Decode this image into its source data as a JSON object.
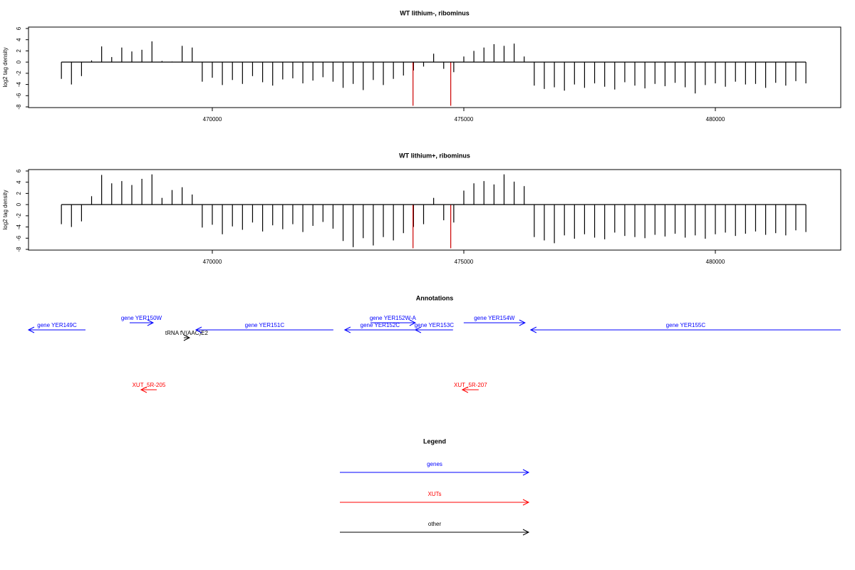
{
  "chart_data": [
    {
      "type": "bar",
      "title": "WT lithium-, ribominus",
      "ylabel": "log2 tag density",
      "xlim": [
        466346,
        482493
      ],
      "ylim": [
        -8,
        6
      ],
      "xticks": [
        470000,
        475000,
        480000
      ],
      "yticks": [
        -8,
        -6,
        -4,
        -2,
        0,
        2,
        4,
        6
      ],
      "series": [
        {
          "name": "signal",
          "color": "#000000",
          "x": [
            467000,
            467200,
            467400,
            467600,
            467800,
            468000,
            468200,
            468400,
            468600,
            468800,
            469000,
            469200,
            469400,
            469600,
            469800,
            470000,
            470200,
            470400,
            470600,
            470800,
            471000,
            471200,
            471400,
            471600,
            471800,
            472000,
            472200,
            472400,
            472600,
            472800,
            473000,
            473200,
            473400,
            473600,
            473800,
            474000,
            474200,
            474400,
            474600,
            474800,
            475000,
            475200,
            475400,
            475600,
            475800,
            476000,
            476200,
            476400,
            476600,
            476800,
            477000,
            477200,
            477400,
            477600,
            477800,
            478000,
            478200,
            478400,
            478600,
            478800,
            479000,
            479200,
            479400,
            479600,
            479800,
            480000,
            480200,
            480400,
            480600,
            480800,
            481000,
            481200,
            481400,
            481600,
            481800
          ],
          "values": [
            -3,
            -4,
            -2.5,
            0.3,
            2.8,
            0.9,
            2.6,
            1.9,
            2.2,
            3.7,
            0.2,
            0.1,
            2.9,
            2.6,
            -3.5,
            -2.8,
            -4.1,
            -3.2,
            -3.9,
            -2.5,
            -3.6,
            -4.2,
            -3.1,
            -2.9,
            -3.8,
            -3.3,
            -2.7,
            -3.5,
            -4.6,
            -3.9,
            -5.0,
            -3.2,
            -4.1,
            -3.0,
            -2.4,
            -1.5,
            -0.8,
            1.5,
            -1.2,
            -1.8,
            1.0,
            2.0,
            2.6,
            3.2,
            2.9,
            3.3,
            1.0,
            -4.2,
            -4.8,
            -4.5,
            -5.1,
            -4.0,
            -4.6,
            -3.8,
            -4.4,
            -4.9,
            -3.6,
            -4.2,
            -4.7,
            -3.9,
            -4.3,
            -3.7,
            -4.5,
            -5.6,
            -4.1,
            -3.8,
            -4.4,
            -3.5,
            -4.0,
            -3.9,
            -4.6,
            -3.7,
            -4.2,
            -3.4,
            -3.8
          ]
        },
        {
          "name": "highlight",
          "color": "#cc0000",
          "x": [
            473990,
            474740
          ],
          "values": [
            -7.8,
            -7.8
          ]
        }
      ]
    },
    {
      "type": "bar",
      "title": "WT lithium+, ribominus",
      "ylabel": "log2 tag density",
      "xlim": [
        466346,
        482493
      ],
      "ylim": [
        -8,
        6
      ],
      "xticks": [
        470000,
        475000,
        480000
      ],
      "yticks": [
        -8,
        -6,
        -4,
        -2,
        0,
        2,
        4,
        6
      ],
      "series": [
        {
          "name": "signal",
          "color": "#000000",
          "x": [
            467000,
            467200,
            467400,
            467600,
            467800,
            468000,
            468200,
            468400,
            468600,
            468800,
            469000,
            469200,
            469400,
            469600,
            469800,
            470000,
            470200,
            470400,
            470600,
            470800,
            471000,
            471200,
            471400,
            471600,
            471800,
            472000,
            472200,
            472400,
            472600,
            472800,
            473000,
            473200,
            473400,
            473600,
            473800,
            474000,
            474200,
            474400,
            474600,
            474800,
            475000,
            475200,
            475400,
            475600,
            475800,
            476000,
            476200,
            476400,
            476600,
            476800,
            477000,
            477200,
            477400,
            477600,
            477800,
            478000,
            478200,
            478400,
            478600,
            478800,
            479000,
            479200,
            479400,
            479600,
            479800,
            480000,
            480200,
            480400,
            480600,
            480800,
            481000,
            481200,
            481400,
            481600,
            481800
          ],
          "values": [
            -3.5,
            -4,
            -3,
            1.5,
            5.3,
            3.8,
            4.2,
            3.5,
            4.6,
            5.4,
            1.2,
            2.6,
            3.1,
            1.8,
            -4.1,
            -3.6,
            -5.3,
            -3.9,
            -4.5,
            -3.2,
            -4.8,
            -3.7,
            -4.4,
            -3.5,
            -4.9,
            -3.8,
            -3.1,
            -4.3,
            -6.5,
            -7.6,
            -6.0,
            -7.3,
            -5.8,
            -6.4,
            -5.1,
            -4.0,
            -3.5,
            1.2,
            -2.8,
            -3.2,
            2.5,
            3.8,
            4.2,
            3.6,
            5.4,
            4.1,
            3.3,
            -5.8,
            -6.4,
            -6.9,
            -5.5,
            -6.1,
            -5.3,
            -5.9,
            -6.2,
            -5.0,
            -5.6,
            -5.8,
            -6.0,
            -5.4,
            -5.7,
            -5.2,
            -5.9,
            -5.5,
            -6.1,
            -5.3,
            -5.0,
            -5.6,
            -5.2,
            -4.8,
            -5.4,
            -5.1,
            -5.5,
            -4.6,
            -4.9
          ]
        },
        {
          "name": "highlight",
          "color": "#cc0000",
          "x": [
            473990,
            474740
          ],
          "values": [
            -7.8,
            -7.8
          ]
        }
      ]
    }
  ],
  "annotations": {
    "title": "Annotations",
    "xlim": [
      466346,
      482493
    ],
    "features": [
      {
        "label": "gene YER149C",
        "kind": "gene",
        "strand": "-",
        "start": 466346,
        "end": 467479
      },
      {
        "label": "gene YER150W",
        "kind": "gene",
        "strand": "+",
        "start": 468357,
        "end": 468824
      },
      {
        "label": "tRNA fV(AAC)E2",
        "kind": "other",
        "strand": "+",
        "start": 469433,
        "end": 469546
      },
      {
        "label": "gene YER151C",
        "kind": "gene",
        "strand": "-",
        "start": 469674,
        "end": 472406
      },
      {
        "label": "gene YER152C",
        "kind": "gene",
        "strand": "-",
        "start": 472633,
        "end": 474035
      },
      {
        "label": "gene YER152W-A",
        "kind": "gene",
        "strand": "+",
        "start": 473143,
        "end": 474035
      },
      {
        "label": "gene YER153C",
        "kind": "gene",
        "strand": "-",
        "start": 474035,
        "end": 474785
      },
      {
        "label": "gene YER154W",
        "kind": "gene",
        "strand": "+",
        "start": 474998,
        "end": 476216
      },
      {
        "label": "gene YER155C",
        "kind": "gene",
        "strand": "-",
        "start": 476329,
        "end": 482493
      },
      {
        "label": "XUT_5R-205",
        "kind": "xut",
        "strand": "-",
        "start": 468583,
        "end": 468895
      },
      {
        "label": "XUT_5R-207",
        "kind": "xut",
        "strand": "-",
        "start": 474970,
        "end": 475295
      }
    ]
  },
  "legend": {
    "title": "Legend",
    "items": [
      {
        "label": "genes",
        "kind": "gene",
        "color": "#0000ff"
      },
      {
        "label": "XUTs",
        "kind": "xut",
        "color": "#ff0000"
      },
      {
        "label": "other",
        "kind": "other",
        "color": "#000000"
      }
    ]
  }
}
